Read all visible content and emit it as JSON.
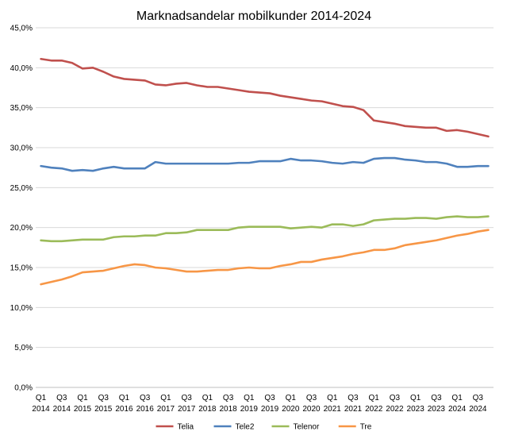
{
  "chart_data": {
    "type": "line",
    "title": "Marknadsandelar mobilkunder 2014-2024",
    "xlabel": "",
    "ylabel": "",
    "x_tick_labels": [
      [
        "Q1",
        "2014"
      ],
      [
        "Q3",
        "2014"
      ],
      [
        "Q1",
        "2015"
      ],
      [
        "Q3",
        "2015"
      ],
      [
        "Q1",
        "2016"
      ],
      [
        "Q3",
        "2016"
      ],
      [
        "Q1",
        "2017"
      ],
      [
        "Q3",
        "2017"
      ],
      [
        "Q1",
        "2018"
      ],
      [
        "Q3",
        "2018"
      ],
      [
        "Q1",
        "2019"
      ],
      [
        "Q3",
        "2019"
      ],
      [
        "Q1",
        "2020"
      ],
      [
        "Q3",
        "2020"
      ],
      [
        "Q1",
        "2021"
      ],
      [
        "Q3",
        "2021"
      ],
      [
        "Q1",
        "2022"
      ],
      [
        "Q3",
        "2022"
      ],
      [
        "Q1",
        "2023"
      ],
      [
        "Q3",
        "2023"
      ],
      [
        "Q1",
        "2024"
      ],
      [
        "Q3",
        "2024"
      ]
    ],
    "y_tick_labels": [
      "0,0%",
      "5,0%",
      "10,0%",
      "15,0%",
      "20,0%",
      "25,0%",
      "30,0%",
      "35,0%",
      "40,0%",
      "45,0%"
    ],
    "ylim": [
      0,
      45
    ],
    "grid": true,
    "legend_position": "bottom",
    "x_quarters": [
      "2014 Q1",
      "2014 Q2",
      "2014 Q3",
      "2014 Q4",
      "2015 Q1",
      "2015 Q2",
      "2015 Q3",
      "2015 Q4",
      "2016 Q1",
      "2016 Q2",
      "2016 Q3",
      "2016 Q4",
      "2017 Q1",
      "2017 Q2",
      "2017 Q3",
      "2017 Q4",
      "2018 Q1",
      "2018 Q2",
      "2018 Q3",
      "2018 Q4",
      "2019 Q1",
      "2019 Q2",
      "2019 Q3",
      "2019 Q4",
      "2020 Q1",
      "2020 Q2",
      "2020 Q3",
      "2020 Q4",
      "2021 Q1",
      "2021 Q2",
      "2021 Q3",
      "2021 Q4",
      "2022 Q1",
      "2022 Q2",
      "2022 Q3",
      "2022 Q4",
      "2023 Q1",
      "2023 Q2",
      "2023 Q3",
      "2023 Q4",
      "2024 Q1",
      "2024 Q2",
      "2024 Q3",
      "2024 Q4"
    ],
    "series": [
      {
        "name": "Telia",
        "color": "#c0504d",
        "values": [
          41.1,
          40.9,
          40.9,
          40.6,
          39.9,
          40.0,
          39.5,
          38.9,
          38.6,
          38.5,
          38.4,
          37.9,
          37.8,
          38.0,
          38.1,
          37.8,
          37.6,
          37.6,
          37.4,
          37.2,
          37.0,
          36.9,
          36.8,
          36.5,
          36.3,
          36.1,
          35.9,
          35.8,
          35.5,
          35.2,
          35.1,
          34.7,
          33.4,
          33.2,
          33.0,
          32.7,
          32.6,
          32.5,
          32.5,
          32.1,
          32.2,
          32.0,
          31.7,
          31.4
        ]
      },
      {
        "name": "Tele2",
        "color": "#4f81bd",
        "values": [
          27.7,
          27.5,
          27.4,
          27.1,
          27.2,
          27.1,
          27.4,
          27.6,
          27.4,
          27.4,
          27.4,
          28.2,
          28.0,
          28.0,
          28.0,
          28.0,
          28.0,
          28.0,
          28.0,
          28.1,
          28.1,
          28.3,
          28.3,
          28.3,
          28.6,
          28.4,
          28.4,
          28.3,
          28.1,
          28.0,
          28.2,
          28.1,
          28.6,
          28.7,
          28.7,
          28.5,
          28.4,
          28.2,
          28.2,
          28.0,
          27.6,
          27.6,
          27.7,
          27.7
        ]
      },
      {
        "name": "Telenor",
        "color": "#9bbb59",
        "values": [
          18.4,
          18.3,
          18.3,
          18.4,
          18.5,
          18.5,
          18.5,
          18.8,
          18.9,
          18.9,
          19.0,
          19.0,
          19.3,
          19.3,
          19.4,
          19.7,
          19.7,
          19.7,
          19.7,
          20.0,
          20.1,
          20.1,
          20.1,
          20.1,
          19.9,
          20.0,
          20.1,
          20.0,
          20.4,
          20.4,
          20.2,
          20.4,
          20.9,
          21.0,
          21.1,
          21.1,
          21.2,
          21.2,
          21.1,
          21.3,
          21.4,
          21.3,
          21.3,
          21.4
        ]
      },
      {
        "name": "Tre",
        "color": "#f79646",
        "values": [
          12.9,
          13.2,
          13.5,
          13.9,
          14.4,
          14.5,
          14.6,
          14.9,
          15.2,
          15.4,
          15.3,
          15.0,
          14.9,
          14.7,
          14.5,
          14.5,
          14.6,
          14.7,
          14.7,
          14.9,
          15.0,
          14.9,
          14.9,
          15.2,
          15.4,
          15.7,
          15.7,
          16.0,
          16.2,
          16.4,
          16.7,
          16.9,
          17.2,
          17.2,
          17.4,
          17.8,
          18.0,
          18.2,
          18.4,
          18.7,
          19.0,
          19.2,
          19.5,
          19.7
        ]
      }
    ]
  }
}
